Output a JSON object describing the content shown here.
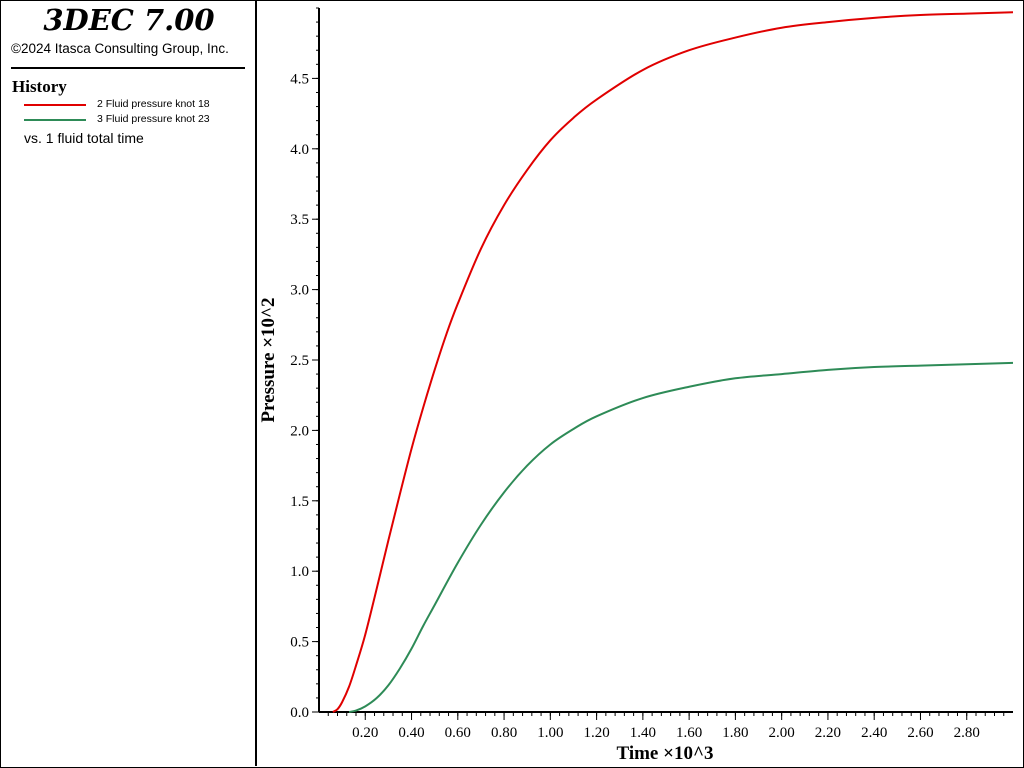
{
  "header": {
    "app_title": "3DEC 7.00",
    "copyright": "©2024 Itasca Consulting Group, Inc."
  },
  "legend": {
    "title": "History",
    "items": [
      {
        "label": "2 Fluid pressure knot 18",
        "color": "#e00000"
      },
      {
        "label": "3 Fluid pressure knot 23",
        "color": "#2e8b57"
      }
    ],
    "vs_label": "vs. 1 fluid total time"
  },
  "chart_data": {
    "type": "line",
    "xlabel": "Time ×10^3",
    "ylabel": "Pressure ×10^2",
    "xlim": [
      0,
      3.0
    ],
    "ylim": [
      0,
      5.0
    ],
    "x_ticks": [
      0.2,
      0.4,
      0.6,
      0.8,
      1.0,
      1.2,
      1.4,
      1.6,
      1.8,
      2.0,
      2.2,
      2.4,
      2.6,
      2.8
    ],
    "x_tick_labels": [
      "0.20",
      "0.40",
      "0.60",
      "0.80",
      "1.00",
      "1.20",
      "1.40",
      "1.60",
      "1.80",
      "2.00",
      "2.20",
      "2.40",
      "2.60",
      "2.80"
    ],
    "y_ticks": [
      0,
      0.5,
      1.0,
      1.5,
      2.0,
      2.5,
      3.0,
      3.5,
      4.0,
      4.5
    ],
    "y_tick_labels": [
      "0.0",
      "0.5",
      "1.0",
      "1.5",
      "2.0",
      "2.5",
      "3.0",
      "3.5",
      "4.0",
      "4.5"
    ],
    "grid": false,
    "series": [
      {
        "name": "2 Fluid pressure knot 18",
        "color": "#e00000",
        "x": [
          0.06,
          0.08,
          0.1,
          0.13,
          0.16,
          0.2,
          0.25,
          0.3,
          0.35,
          0.4,
          0.45,
          0.5,
          0.55,
          0.6,
          0.7,
          0.8,
          0.9,
          1.0,
          1.1,
          1.2,
          1.4,
          1.6,
          1.8,
          2.0,
          2.2,
          2.4,
          2.6,
          2.8,
          3.0
        ],
        "y": [
          0.0,
          0.02,
          0.07,
          0.18,
          0.33,
          0.55,
          0.88,
          1.22,
          1.55,
          1.87,
          2.16,
          2.43,
          2.68,
          2.9,
          3.29,
          3.6,
          3.85,
          4.06,
          4.22,
          4.35,
          4.56,
          4.7,
          4.79,
          4.86,
          4.9,
          4.93,
          4.95,
          4.96,
          4.97
        ]
      },
      {
        "name": "3 Fluid pressure knot 23",
        "color": "#2e8b57",
        "x": [
          0.13,
          0.16,
          0.2,
          0.25,
          0.3,
          0.35,
          0.4,
          0.45,
          0.5,
          0.6,
          0.7,
          0.8,
          0.9,
          1.0,
          1.1,
          1.2,
          1.4,
          1.6,
          1.8,
          2.0,
          2.2,
          2.4,
          2.6,
          2.8,
          3.0
        ],
        "y": [
          0.0,
          0.01,
          0.04,
          0.1,
          0.19,
          0.31,
          0.45,
          0.61,
          0.76,
          1.06,
          1.33,
          1.56,
          1.75,
          1.9,
          2.01,
          2.1,
          2.23,
          2.31,
          2.37,
          2.4,
          2.43,
          2.45,
          2.46,
          2.47,
          2.48
        ]
      }
    ]
  }
}
